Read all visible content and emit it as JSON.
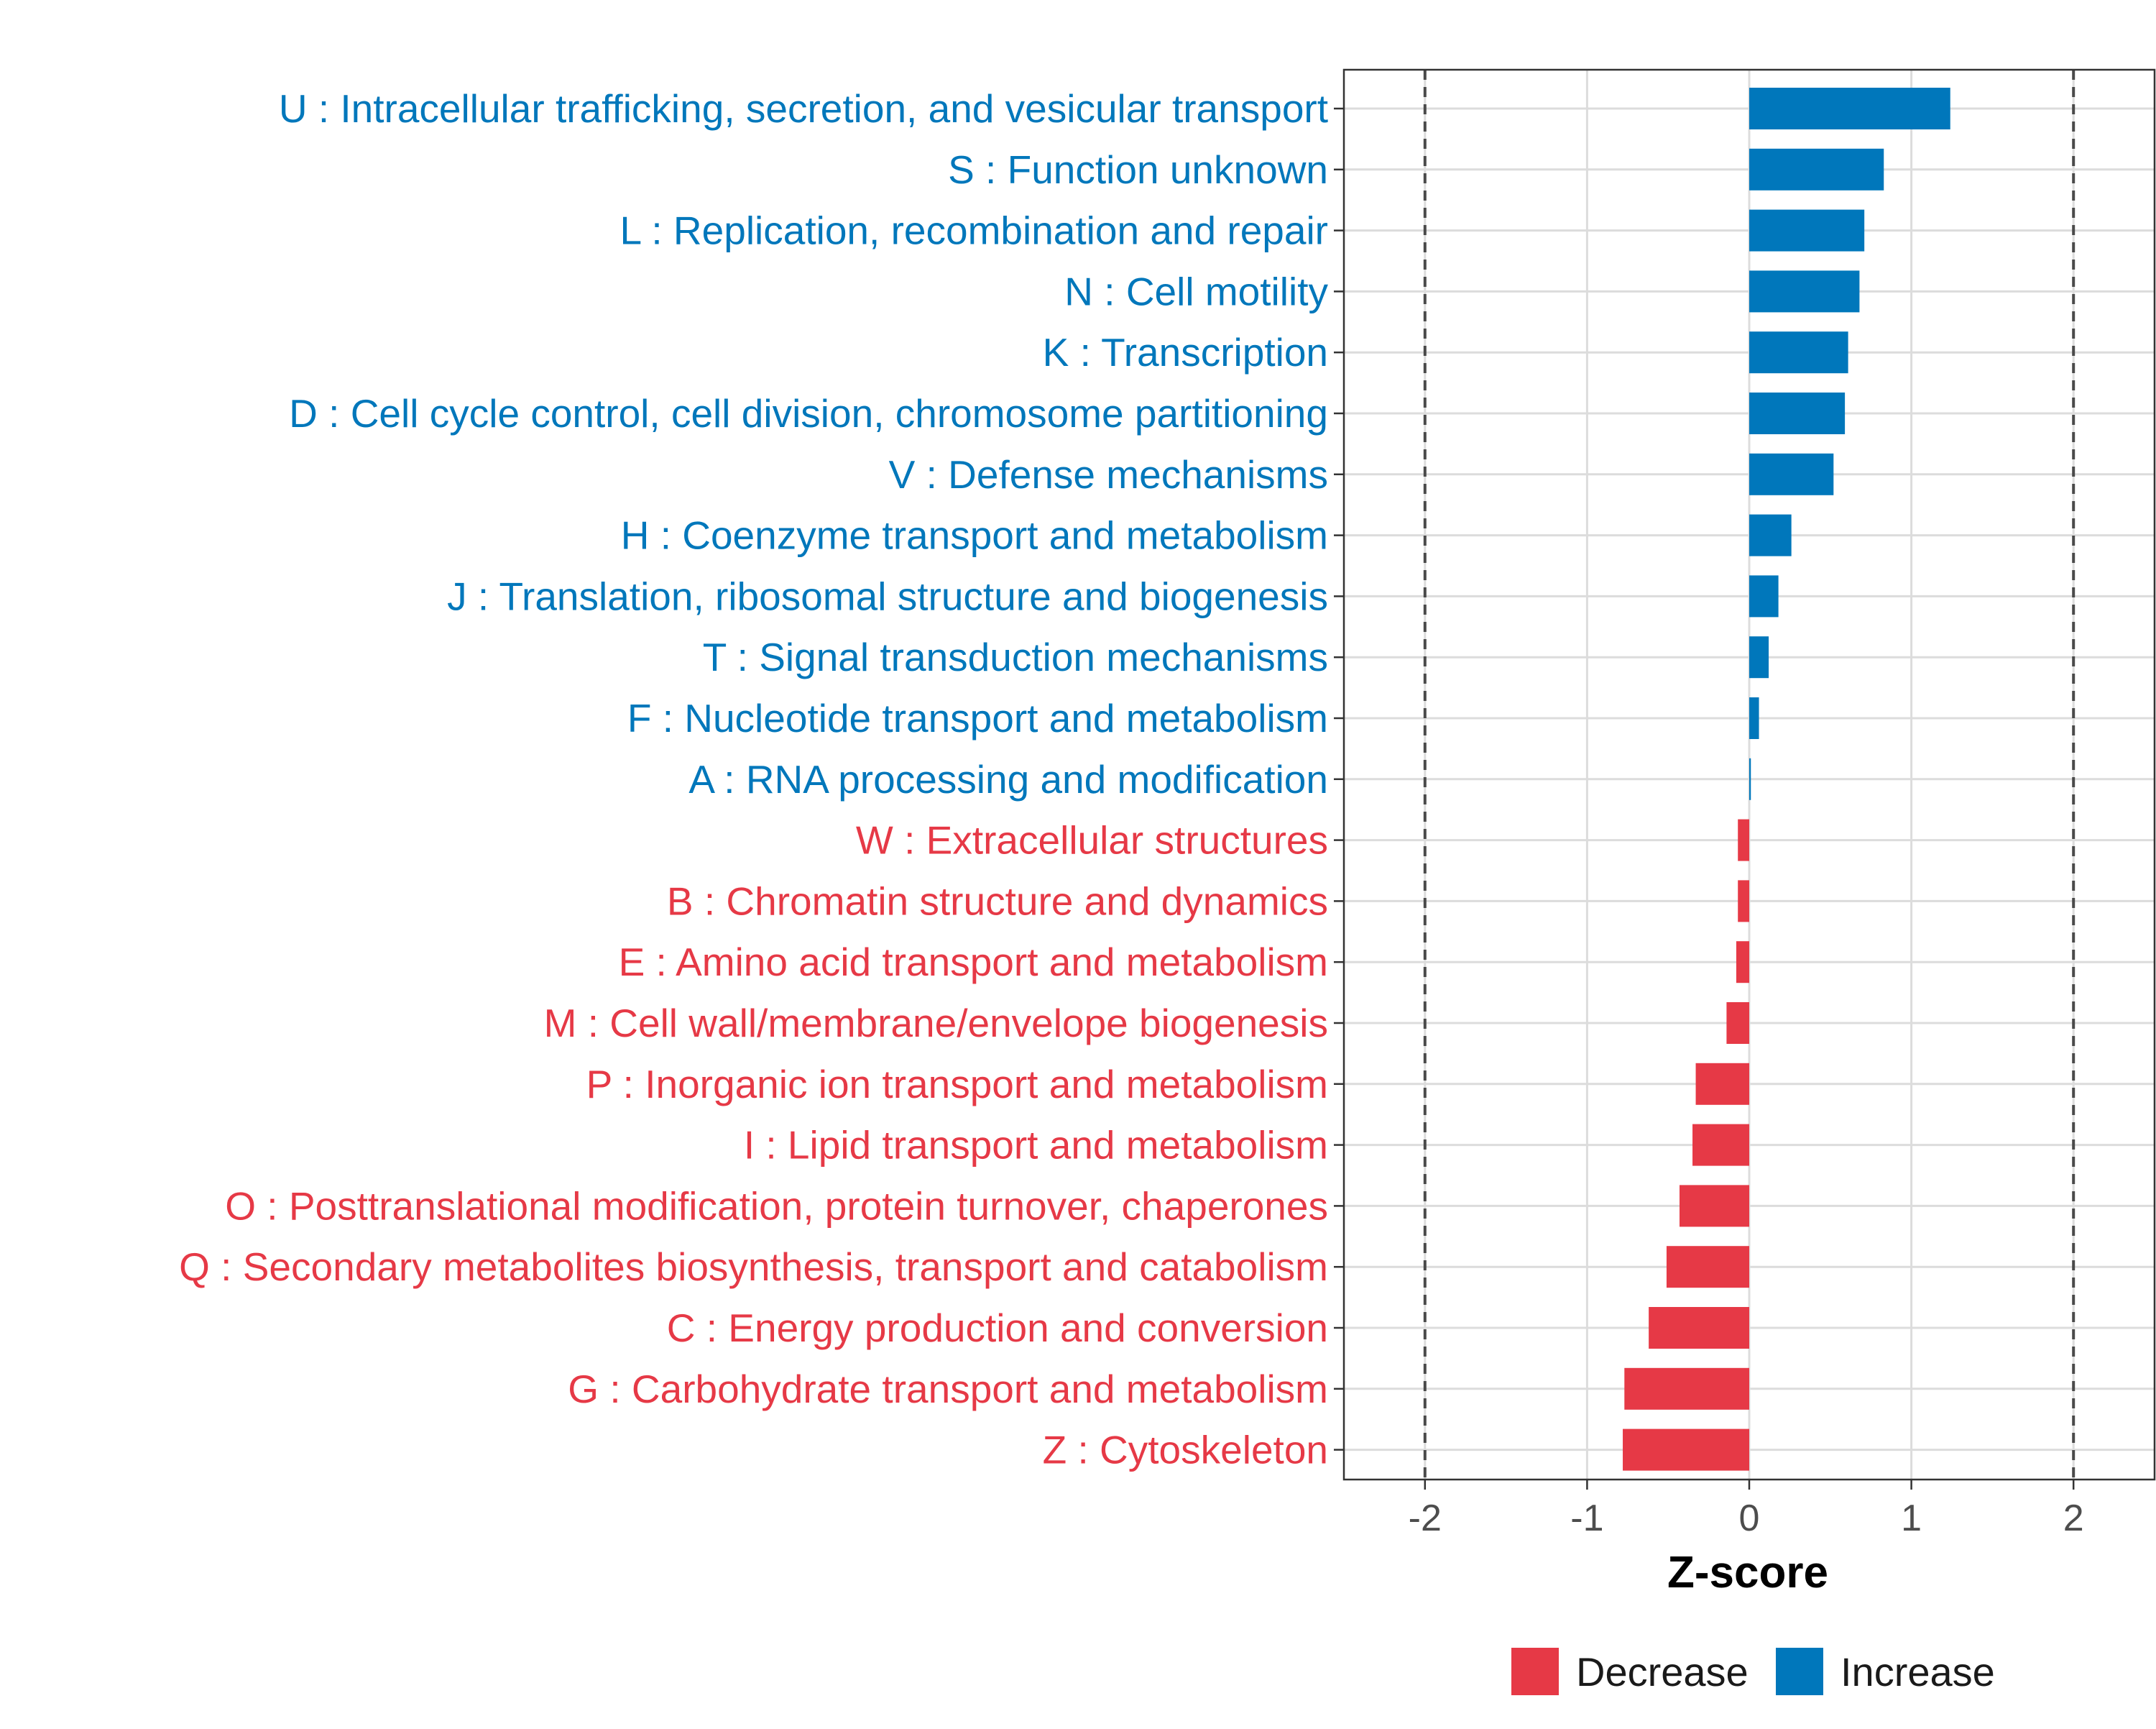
{
  "chart_data": {
    "type": "bar",
    "orientation": "horizontal",
    "xlabel": "Z-score",
    "ylabel": "",
    "xlim": [
      -2.5,
      2.5
    ],
    "xticks": [
      -2,
      -1,
      0,
      1,
      2
    ],
    "xtick_labels": [
      "-2",
      "-1",
      "0",
      "1",
      "2"
    ],
    "reference_lines": [
      -2,
      2
    ],
    "grid": true,
    "legend_position": "bottom",
    "colors": {
      "Decrease": "#E63946",
      "Increase": "#0077BB"
    },
    "legend": [
      {
        "label": "Decrease",
        "color": "#E63946"
      },
      {
        "label": "Increase",
        "color": "#0077BB"
      }
    ],
    "categories": [
      "U : Intracellular trafficking, secretion, and vesicular transport",
      "S : Function unknown",
      "L : Replication, recombination and repair",
      "N : Cell motility",
      "K : Transcription",
      "D : Cell cycle control, cell division, chromosome partitioning",
      "V : Defense mechanisms",
      "H : Coenzyme transport and metabolism",
      "J : Translation, ribosomal structure and biogenesis",
      "T : Signal transduction mechanisms",
      "F : Nucleotide transport and metabolism",
      "A : RNA processing and modification",
      "W : Extracellular structures",
      "B : Chromatin structure and dynamics",
      "E : Amino acid transport and metabolism",
      "M : Cell wall/membrane/envelope biogenesis",
      "P : Inorganic ion transport and metabolism",
      "I : Lipid transport and metabolism",
      "O : Posttranslational modification, protein turnover, chaperones",
      "Q : Secondary metabolites biosynthesis, transport and catabolism",
      "C : Energy production and conversion",
      "G : Carbohydrate transport and metabolism",
      "Z : Cytoskeleton"
    ],
    "values": [
      1.24,
      0.83,
      0.71,
      0.68,
      0.61,
      0.59,
      0.52,
      0.26,
      0.18,
      0.12,
      0.06,
      0.01,
      -0.07,
      -0.07,
      -0.08,
      -0.14,
      -0.33,
      -0.35,
      -0.43,
      -0.51,
      -0.62,
      -0.77,
      -0.78
    ],
    "groups": [
      "Increase",
      "Increase",
      "Increase",
      "Increase",
      "Increase",
      "Increase",
      "Increase",
      "Increase",
      "Increase",
      "Increase",
      "Increase",
      "Increase",
      "Decrease",
      "Decrease",
      "Decrease",
      "Decrease",
      "Decrease",
      "Decrease",
      "Decrease",
      "Decrease",
      "Decrease",
      "Decrease",
      "Decrease"
    ]
  }
}
